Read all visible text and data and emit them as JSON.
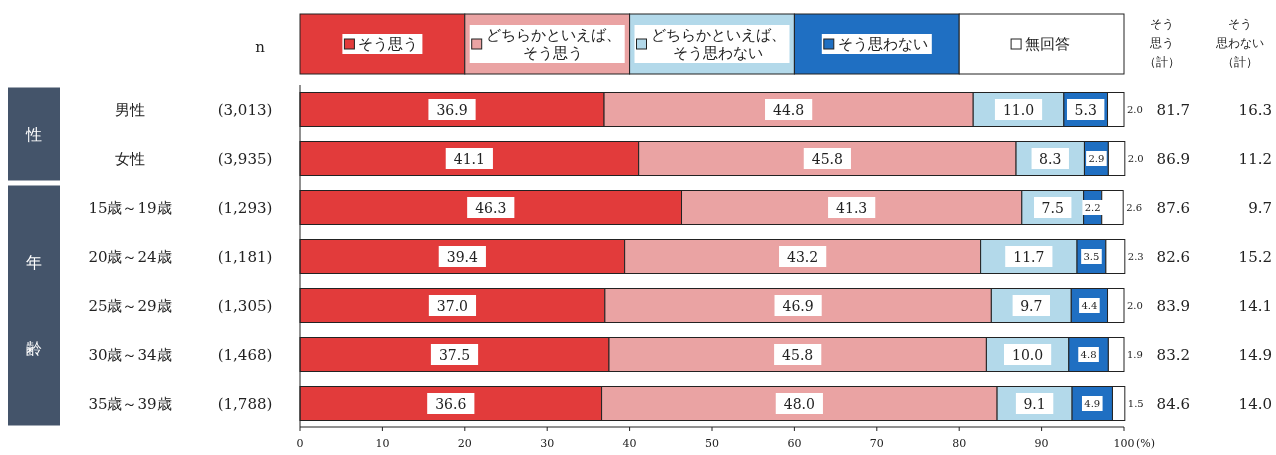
{
  "chart_data": {
    "type": "bar",
    "orientation": "horizontal",
    "stacked": true,
    "legend": "top",
    "grid": false,
    "categories": [
      "男性",
      "女性",
      "15歳～19歳",
      "20歳～24歳",
      "25歳～29歳",
      "30歳～34歳",
      "35歳～39歳"
    ],
    "series": [
      {
        "name": "そう思う",
        "color": "#e23b3b",
        "values": [
          36.9,
          41.1,
          46.3,
          39.4,
          37.0,
          37.5,
          36.6
        ],
        "value_labels": [
          "36.9",
          "41.1",
          "46.3",
          "39.4",
          "37.0",
          "37.5",
          "36.6"
        ]
      },
      {
        "name": "どちらかといえば、そう思う",
        "color": "#eaa3a3",
        "values": [
          44.8,
          45.8,
          41.3,
          43.2,
          46.9,
          45.8,
          48.0
        ],
        "value_labels": [
          "44.8",
          "45.8",
          "41.3",
          "43.2",
          "46.9",
          "45.8",
          "48.0"
        ]
      },
      {
        "name": "どちらかといえば、そう思わない",
        "color": "#b3d9ea",
        "values": [
          11.0,
          8.3,
          7.5,
          11.7,
          9.7,
          10.0,
          9.1
        ],
        "value_labels": [
          "11.0",
          "8.3",
          "7.5",
          "11.7",
          "9.7",
          "10.0",
          "9.1"
        ]
      },
      {
        "name": "そう思わない",
        "color": "#1f6fc2",
        "values": [
          5.3,
          2.9,
          2.2,
          3.5,
          4.4,
          4.8,
          4.9
        ],
        "value_labels": [
          "5.3",
          "2.9",
          "2.2",
          "3.5",
          "4.4",
          "4.8",
          "4.9"
        ]
      },
      {
        "name": "無回答",
        "color": "#ffffff",
        "values": [
          2.0,
          2.0,
          2.6,
          2.3,
          2.0,
          1.9,
          1.5
        ],
        "value_labels": [
          "2.0",
          "2.0",
          "2.6",
          "2.3",
          "2.0",
          "1.9",
          "1.5"
        ]
      }
    ],
    "xlim": [
      0,
      100
    ],
    "xticks": [
      0,
      10,
      20,
      30,
      40,
      50,
      60,
      70,
      80,
      90,
      100
    ],
    "xlabel": "(%)",
    "annotations": [
      "n",
      "そう",
      "思う",
      "（計）",
      "そう",
      "思わない",
      "（計）",
      "性",
      "年",
      "齢",
      "(3,013)",
      "81.7",
      "16.3",
      "(3,935)",
      "86.9",
      "11.2",
      "(1,293)",
      "87.6",
      "9.7",
      "(1,181)",
      "82.6",
      "15.2",
      "(1,305)",
      "83.9",
      "14.1",
      "(1,468)",
      "83.2",
      "14.9",
      "(1,788)",
      "84.6",
      "14.0"
    ]
  }
}
